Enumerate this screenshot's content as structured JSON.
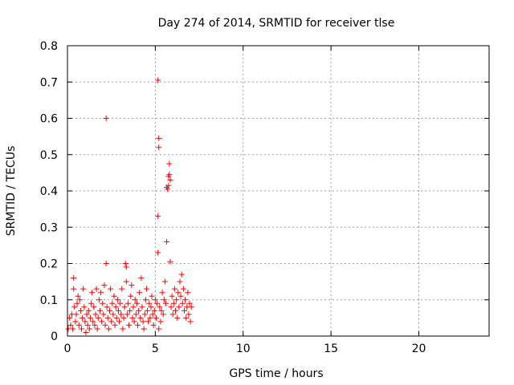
{
  "chart_data": {
    "type": "scatter",
    "title": "Day 274 of 2014, SRMTID for receiver tlse",
    "xlabel": "GPS time / hours",
    "ylabel": "SRMTID / TECUs",
    "xlim": [
      0,
      24
    ],
    "ylim": [
      0,
      0.8
    ],
    "xticks": [
      0,
      5,
      10,
      15,
      20
    ],
    "yticks": [
      0,
      0.1,
      0.2,
      0.3,
      0.4,
      0.5,
      0.6,
      0.7,
      0.8
    ],
    "ytick_labels": [
      "0",
      "0.1",
      "0.2",
      "0.3",
      "0.4",
      "0.5",
      "0.6",
      "0.7",
      "0.8"
    ],
    "grid": true,
    "marker": "+",
    "series": [
      {
        "name": "tlse",
        "color": "#ff0000",
        "points": [
          [
            0.05,
            0.02
          ],
          [
            0.12,
            0.05
          ],
          [
            0.18,
            0.03
          ],
          [
            0.25,
            0.06
          ],
          [
            0.3,
            0.02
          ],
          [
            0.35,
            0.13
          ],
          [
            0.35,
            0.16
          ],
          [
            0.4,
            0.08
          ],
          [
            0.45,
            0.04
          ],
          [
            0.5,
            0.06
          ],
          [
            0.55,
            0.09
          ],
          [
            0.6,
            0.11
          ],
          [
            0.65,
            0.03
          ],
          [
            0.7,
            0.1
          ],
          [
            0.75,
            0.07
          ],
          [
            0.8,
            0.02
          ],
          [
            0.85,
            0.05
          ],
          [
            0.9,
            0.13
          ],
          [
            0.95,
            0.08
          ],
          [
            1.0,
            0.04
          ],
          [
            1.05,
            0.01
          ],
          [
            1.1,
            0.06
          ],
          [
            1.15,
            0.03
          ],
          [
            1.2,
            0.07
          ],
          [
            1.25,
            0.02
          ],
          [
            1.3,
            0.05
          ],
          [
            1.35,
            0.09
          ],
          [
            1.4,
            0.12
          ],
          [
            1.45,
            0.04
          ],
          [
            1.5,
            0.08
          ],
          [
            1.55,
            0.03
          ],
          [
            1.6,
            0.06
          ],
          [
            1.65,
            0.13
          ],
          [
            1.7,
            0.02
          ],
          [
            1.75,
            0.05
          ],
          [
            1.8,
            0.1
          ],
          [
            1.85,
            0.07
          ],
          [
            1.9,
            0.12
          ],
          [
            1.95,
            0.04
          ],
          [
            2.0,
            0.09
          ],
          [
            2.05,
            0.06
          ],
          [
            2.1,
            0.14
          ],
          [
            2.15,
            0.03
          ],
          [
            2.2,
            0.6
          ],
          [
            2.2,
            0.2
          ],
          [
            2.25,
            0.08
          ],
          [
            2.3,
            0.05
          ],
          [
            2.35,
            0.02
          ],
          [
            2.4,
            0.07
          ],
          [
            2.45,
            0.13
          ],
          [
            2.5,
            0.04
          ],
          [
            2.55,
            0.09
          ],
          [
            2.6,
            0.06
          ],
          [
            2.65,
            0.11
          ],
          [
            2.7,
            0.03
          ],
          [
            2.75,
            0.08
          ],
          [
            2.8,
            0.05
          ],
          [
            2.85,
            0.1
          ],
          [
            2.9,
            0.07
          ],
          [
            2.95,
            0.04
          ],
          [
            3.0,
            0.09
          ],
          [
            3.05,
            0.06
          ],
          [
            3.1,
            0.13
          ],
          [
            3.15,
            0.02
          ],
          [
            3.2,
            0.05
          ],
          [
            3.25,
            0.08
          ],
          [
            3.3,
            0.2
          ],
          [
            3.35,
            0.19
          ],
          [
            3.35,
            0.15
          ],
          [
            3.4,
            0.06
          ],
          [
            3.45,
            0.09
          ],
          [
            3.5,
            0.03
          ],
          [
            3.55,
            0.07
          ],
          [
            3.6,
            0.11
          ],
          [
            3.65,
            0.14
          ],
          [
            3.7,
            0.05
          ],
          [
            3.75,
            0.08
          ],
          [
            3.8,
            0.04
          ],
          [
            3.85,
            0.1
          ],
          [
            3.9,
            0.06
          ],
          [
            3.95,
            0.09
          ],
          [
            4.0,
            0.03
          ],
          [
            4.05,
            0.07
          ],
          [
            4.1,
            0.12
          ],
          [
            4.15,
            0.05
          ],
          [
            4.2,
            0.16
          ],
          [
            4.25,
            0.08
          ],
          [
            4.3,
            0.04
          ],
          [
            4.35,
            0.02
          ],
          [
            4.4,
            0.06
          ],
          [
            4.45,
            0.1
          ],
          [
            4.5,
            0.13
          ],
          [
            4.55,
            0.07
          ],
          [
            4.6,
            0.04
          ],
          [
            4.65,
            0.09
          ],
          [
            4.7,
            0.05
          ],
          [
            4.75,
            0.08
          ],
          [
            4.8,
            0.11
          ],
          [
            4.85,
            0.06
          ],
          [
            4.9,
            0.03
          ],
          [
            4.95,
            0.07
          ],
          [
            5.0,
            0.1
          ],
          [
            5.05,
            0.05
          ],
          [
            5.1,
            0.09
          ],
          [
            5.15,
            0.705
          ],
          [
            5.15,
            0.33
          ],
          [
            5.15,
            0.23
          ],
          [
            5.2,
            0.545
          ],
          [
            5.2,
            0.52
          ],
          [
            5.2,
            0.02
          ],
          [
            5.25,
            0.08
          ],
          [
            5.3,
            0.04
          ],
          [
            5.35,
            0.07
          ],
          [
            5.4,
            0.12
          ],
          [
            5.45,
            0.06
          ],
          [
            5.5,
            0.1
          ],
          [
            5.55,
            0.15
          ],
          [
            5.6,
            0.09
          ],
          [
            5.65,
            0.26
          ],
          [
            5.65,
            0.41
          ],
          [
            5.7,
            0.405
          ],
          [
            5.75,
            0.415
          ],
          [
            5.75,
            0.44
          ],
          [
            5.8,
            0.445
          ],
          [
            5.8,
            0.475
          ],
          [
            5.85,
            0.43
          ],
          [
            5.85,
            0.205
          ],
          [
            5.9,
            0.08
          ],
          [
            5.95,
            0.11
          ],
          [
            6.0,
            0.06
          ],
          [
            6.05,
            0.09
          ],
          [
            6.1,
            0.13
          ],
          [
            6.15,
            0.07
          ],
          [
            6.2,
            0.1
          ],
          [
            6.25,
            0.05
          ],
          [
            6.3,
            0.12
          ],
          [
            6.35,
            0.08
          ],
          [
            6.4,
            0.15
          ],
          [
            6.45,
            0.11
          ],
          [
            6.5,
            0.17
          ],
          [
            6.55,
            0.09
          ],
          [
            6.6,
            0.13
          ],
          [
            6.65,
            0.07
          ],
          [
            6.7,
            0.1
          ],
          [
            6.75,
            0.05
          ],
          [
            6.8,
            0.08
          ],
          [
            6.85,
            0.12
          ],
          [
            6.9,
            0.06
          ],
          [
            6.95,
            0.09
          ],
          [
            7.0,
            0.04
          ],
          [
            7.05,
            0.08
          ]
        ]
      }
    ]
  }
}
